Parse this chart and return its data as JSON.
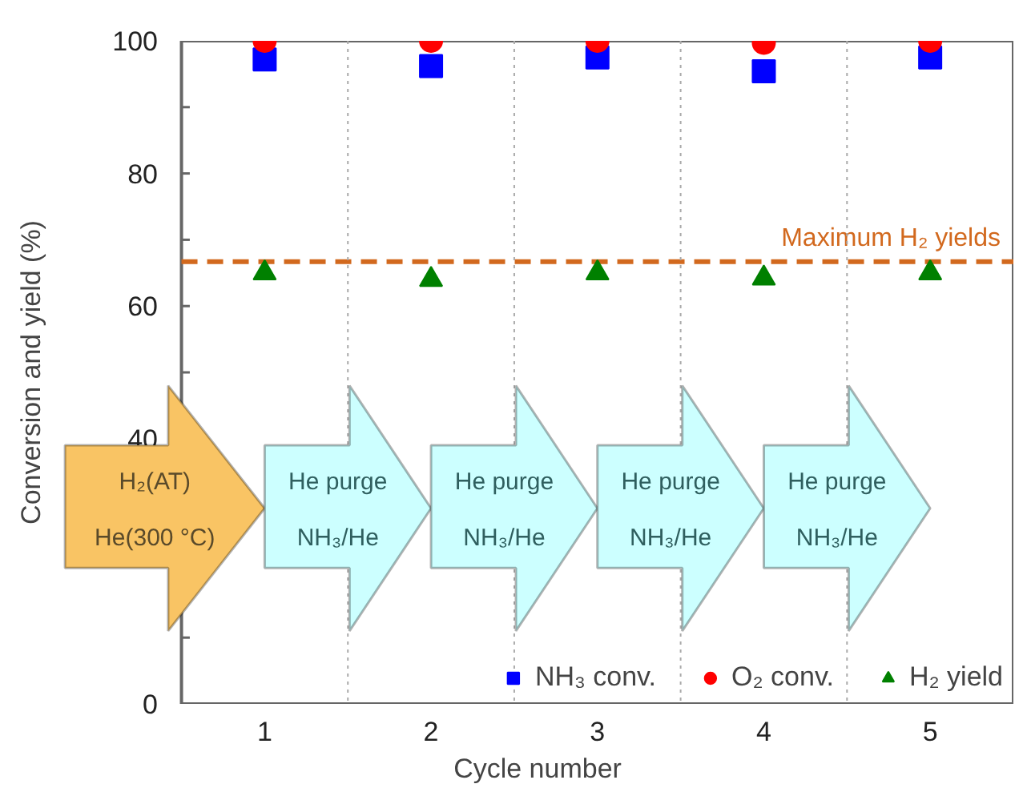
{
  "chart_data": {
    "type": "scatter",
    "xlabel": "Cycle number",
    "ylabel": "Conversion and yield (%)",
    "x": [
      1,
      2,
      3,
      4,
      5
    ],
    "series": [
      {
        "name": "NH₃ conv.",
        "color": "#0000ff",
        "marker": "square",
        "values": [
          97.2,
          96.2,
          97.5,
          95.4,
          97.5
        ]
      },
      {
        "name": "O₂ conv.",
        "color": "#ff0000",
        "marker": "circle",
        "values": [
          100,
          100,
          100,
          99.7,
          100
        ]
      },
      {
        "name": "H₂ yield",
        "color": "#008000",
        "marker": "triangle",
        "values": [
          65,
          64,
          65,
          64.2,
          65
        ]
      }
    ],
    "xlim": [
      0.5,
      5.5
    ],
    "ylim": [
      0,
      100
    ],
    "xticks": [
      1,
      2,
      3,
      4,
      5
    ],
    "yticks": [
      0,
      {
        "value": 10,
        "label": null
      },
      {
        "value": 20,
        "label": null
      },
      {
        "value": 30,
        "label": null
      },
      40,
      {
        "value": 50,
        "label": null
      },
      60,
      {
        "value": 70,
        "label": null
      },
      80,
      {
        "value": 90,
        "label": null
      },
      100
    ],
    "ref_lines": [
      {
        "axis": "y",
        "value": 66.7,
        "label": "Maximum H₂ yields",
        "color": "#d2691e",
        "line_style": "dashed"
      },
      {
        "axis": "x",
        "value": 1.5,
        "color": "#aaaaaa",
        "line_style": "dotted"
      },
      {
        "axis": "x",
        "value": 2.5,
        "color": "#aaaaaa",
        "line_style": "dotted"
      },
      {
        "axis": "x",
        "value": 3.5,
        "color": "#aaaaaa",
        "line_style": "dotted"
      },
      {
        "axis": "x",
        "value": 4.5,
        "color": "#aaaaaa",
        "line_style": "dotted"
      }
    ],
    "annotations": [
      "H₂(AT)",
      "He(300 °C)",
      "He purge",
      "NH₃/He",
      "He purge",
      "NH₃/He",
      "He purge",
      "NH₃/He",
      "He purge",
      "NH₃/He"
    ],
    "legend": "bottom",
    "grid": false
  }
}
